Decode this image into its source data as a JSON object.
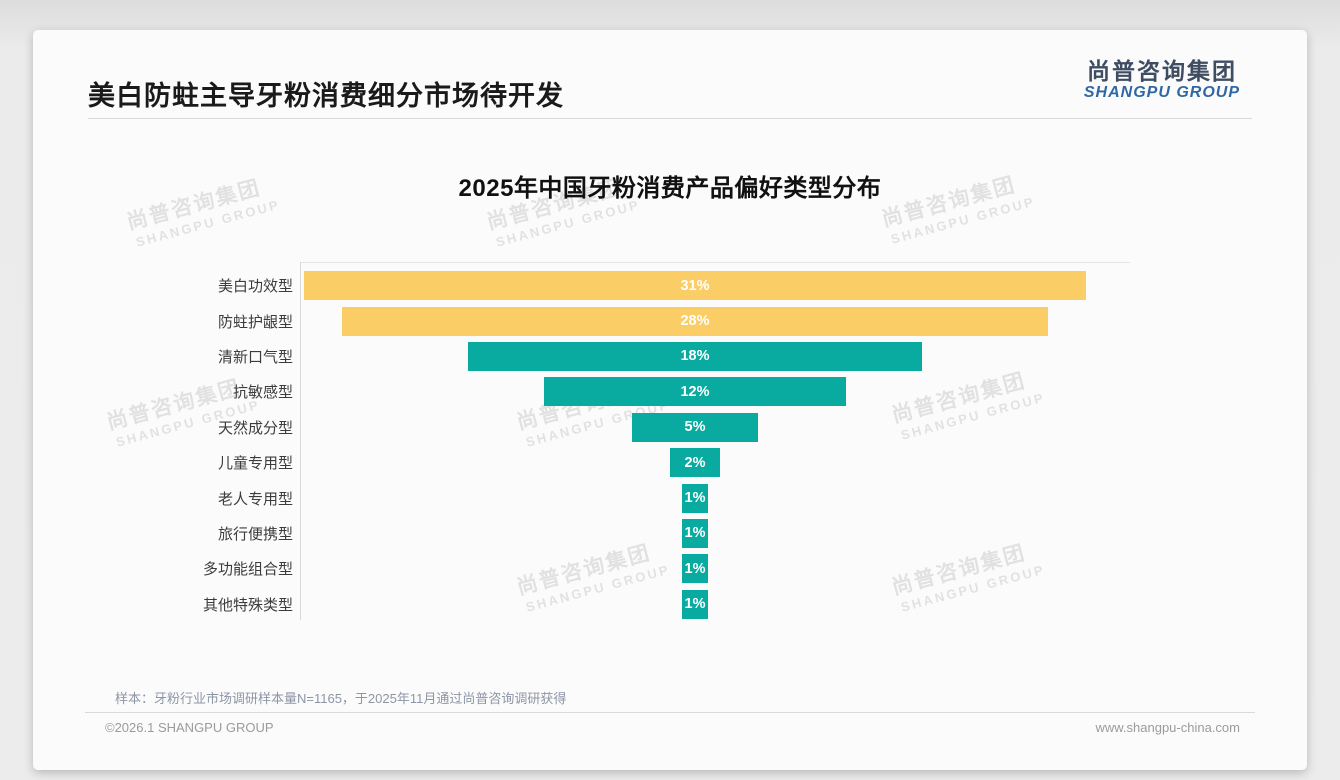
{
  "page": {
    "title": "美白防蛀主导牙粉消费细分市场待开发",
    "logo": {
      "cn": "尚普咨询集团",
      "en": "SHANGPU GROUP"
    },
    "watermark": {
      "line1": "尚普咨询集团",
      "line2": "SHANGPU GROUP"
    },
    "note": "样本：牙粉行业市场调研样本量N=1165，于2025年11月通过尚普咨询调研获得",
    "footer": {
      "left": "©2026.1 SHANGPU GROUP",
      "right": "www.shangpu-china.com"
    }
  },
  "chart_data": {
    "type": "bar",
    "subtype": "centered-funnel",
    "title": "2025年中国牙粉消费产品偏好类型分布",
    "categories": [
      "美白功效型",
      "防蛀护龈型",
      "清新口气型",
      "抗敏感型",
      "天然成分型",
      "儿童专用型",
      "老人专用型",
      "旅行便携型",
      "多功能组合型",
      "其他特殊类型"
    ],
    "values": [
      31,
      28,
      18,
      12,
      5,
      2,
      1,
      1,
      1,
      1
    ],
    "value_labels": [
      "31%",
      "28%",
      "18%",
      "12%",
      "5%",
      "2%",
      "1%",
      "1%",
      "1%",
      "1%"
    ],
    "unit": "percent",
    "bar_colors": [
      "#facd67",
      "#facd67",
      "#09aba0",
      "#09aba0",
      "#09aba0",
      "#09aba0",
      "#09aba0",
      "#09aba0",
      "#09aba0",
      "#09aba0"
    ],
    "colors": {
      "highlight": "#facd67",
      "normal": "#09aba0",
      "value_text": "#ffffff",
      "axis": "#d8d8d8"
    },
    "xlim": [
      0,
      33
    ],
    "grid": false,
    "legend": false,
    "orientation": "horizontal",
    "alignment": "bars centered on common vertical axis"
  }
}
